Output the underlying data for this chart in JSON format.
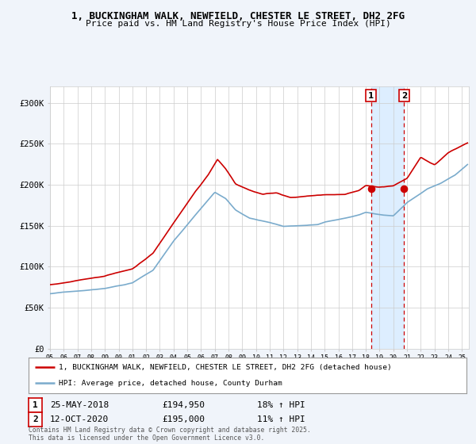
{
  "title1": "1, BUCKINGHAM WALK, NEWFIELD, CHESTER LE STREET, DH2 2FG",
  "title2": "Price paid vs. HM Land Registry's House Price Index (HPI)",
  "legend_label_red": "1, BUCKINGHAM WALK, NEWFIELD, CHESTER LE STREET, DH2 2FG (detached house)",
  "legend_label_blue": "HPI: Average price, detached house, County Durham",
  "annotation1_date": "25-MAY-2018",
  "annotation1_price": "£194,950",
  "annotation1_hpi": "18% ↑ HPI",
  "annotation2_date": "12-OCT-2020",
  "annotation2_price": "£195,000",
  "annotation2_hpi": "11% ↑ HPI",
  "copyright": "Contains HM Land Registry data © Crown copyright and database right 2025.\nThis data is licensed under the Open Government Licence v3.0.",
  "red_color": "#cc0000",
  "blue_color": "#7aabcc",
  "bg_color": "#f0f4fa",
  "plot_bg": "#ffffff",
  "grid_color": "#cccccc",
  "highlight_bg": "#ddeeff",
  "ylim": [
    0,
    320000
  ],
  "yticks": [
    0,
    50000,
    100000,
    150000,
    200000,
    250000,
    300000
  ],
  "ytick_labels": [
    "£0",
    "£50K",
    "£100K",
    "£150K",
    "£200K",
    "£250K",
    "£300K"
  ],
  "sale1_x": 2018.37,
  "sale1_y": 194950,
  "sale2_x": 2020.78,
  "sale2_y": 195000,
  "vline1_x": 2018.37,
  "vline2_x": 2020.78,
  "xmin": 1995.0,
  "xmax": 2025.5
}
